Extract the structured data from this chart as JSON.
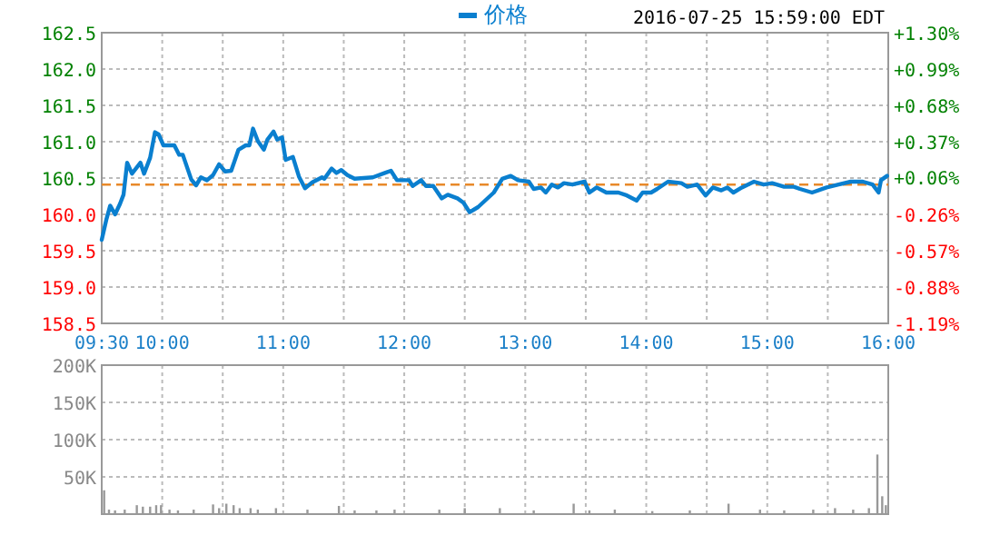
{
  "chart_data": [
    {
      "type": "line",
      "legend": "top",
      "grid": true,
      "line_style": "solid",
      "annotations": [
        "2016-07-25 15:59:00 EDT"
      ],
      "xlim": [
        9.5,
        16
      ],
      "xticks": [
        {
          "value": 9.5,
          "label": "09:30"
        },
        {
          "value": 10,
          "label": "10:00"
        },
        {
          "value": 10.5,
          "label": null
        },
        {
          "value": 11,
          "label": "11:00"
        },
        {
          "value": 11.5,
          "label": null
        },
        {
          "value": 12,
          "label": "12:00"
        },
        {
          "value": 12.5,
          "label": null
        },
        {
          "value": 13,
          "label": "13:00"
        },
        {
          "value": 13.5,
          "label": null
        },
        {
          "value": 14,
          "label": "14:00"
        },
        {
          "value": 14.5,
          "label": null
        },
        {
          "value": 15,
          "label": "15:00"
        },
        {
          "value": 15.5,
          "label": null
        },
        {
          "value": 16,
          "label": "16:00"
        }
      ],
      "ylim": [
        158.5,
        162.5
      ],
      "yticks": [
        {
          "value": 158.5,
          "label": "158.5"
        },
        {
          "value": 159,
          "label": "159.0"
        },
        {
          "value": 159.5,
          "label": "159.5"
        },
        {
          "value": 160,
          "label": "160.0"
        },
        {
          "value": 160.5,
          "label": "160.5"
        },
        {
          "value": 161,
          "label": "161.0"
        },
        {
          "value": 161.5,
          "label": "161.5"
        },
        {
          "value": 162,
          "label": "162.0"
        },
        {
          "value": 162.5,
          "label": "162.5"
        }
      ],
      "y2lim": [
        -1.19,
        1.3
      ],
      "y2ticks": [
        {
          "value": -1.19,
          "label": "-1.19%"
        },
        {
          "value": -0.88,
          "label": "-0.88%"
        },
        {
          "value": -0.57,
          "label": "-0.57%"
        },
        {
          "value": -0.26,
          "label": "-0.26%"
        },
        {
          "value": 0.06,
          "label": "+0.06%"
        },
        {
          "value": 0.37,
          "label": "+0.37%"
        },
        {
          "value": 0.68,
          "label": "+0.68%"
        },
        {
          "value": 0.99,
          "label": "+0.99%"
        },
        {
          "value": 1.3,
          "label": "+1.30%"
        }
      ],
      "ref_lines": [
        {
          "axis": "y",
          "value": 160.41,
          "color": "#e8892a",
          "line_style": "dashed"
        }
      ],
      "series": [
        {
          "name": "价格",
          "color": "#0a7fcf",
          "x": [
            9.5,
            9.54,
            9.57,
            9.61,
            9.65,
            9.68,
            9.71,
            9.75,
            9.82,
            9.85,
            9.9,
            9.94,
            9.97,
            10.01,
            10.1,
            10.14,
            10.17,
            10.24,
            10.28,
            10.32,
            10.37,
            10.42,
            10.47,
            10.52,
            10.57,
            10.63,
            10.69,
            10.72,
            10.75,
            10.79,
            10.84,
            10.87,
            10.92,
            10.95,
            10.99,
            11.02,
            11.08,
            11.13,
            11.18,
            11.24,
            11.32,
            11.34,
            11.4,
            11.44,
            11.48,
            11.53,
            11.59,
            11.74,
            11.84,
            11.89,
            11.94,
            12.04,
            12.07,
            12.14,
            12.18,
            12.24,
            12.31,
            12.36,
            12.44,
            12.49,
            12.54,
            12.61,
            12.74,
            12.81,
            12.88,
            12.94,
            13.03,
            13.07,
            13.13,
            13.17,
            13.22,
            13.27,
            13.32,
            13.39,
            13.49,
            13.53,
            13.59,
            13.67,
            13.77,
            13.84,
            13.92,
            13.97,
            14.04,
            14.09,
            14.18,
            14.29,
            14.34,
            14.42,
            14.49,
            14.55,
            14.62,
            14.67,
            14.72,
            14.79,
            14.89,
            14.97,
            15.04,
            15.14,
            15.22,
            15.27,
            15.37,
            15.49,
            15.59,
            15.69,
            15.79,
            15.87,
            15.92,
            15.94,
            15.99
          ],
          "values": [
            159.65,
            159.94,
            160.12,
            160.0,
            160.14,
            160.27,
            160.71,
            160.56,
            160.71,
            160.56,
            160.78,
            161.13,
            161.1,
            160.95,
            160.95,
            160.82,
            160.82,
            160.48,
            160.4,
            160.51,
            160.47,
            160.54,
            160.69,
            160.59,
            160.6,
            160.89,
            160.95,
            160.95,
            161.18,
            161.01,
            160.89,
            161.03,
            161.14,
            161.03,
            161.06,
            160.75,
            160.79,
            160.52,
            160.36,
            160.44,
            160.51,
            160.49,
            160.63,
            160.57,
            160.61,
            160.54,
            160.49,
            160.51,
            160.57,
            160.6,
            160.47,
            160.47,
            160.39,
            160.47,
            160.39,
            160.39,
            160.22,
            160.27,
            160.22,
            160.16,
            160.03,
            160.1,
            160.3,
            160.49,
            160.53,
            160.47,
            160.45,
            160.35,
            160.37,
            160.3,
            160.41,
            160.37,
            160.43,
            160.41,
            160.45,
            160.3,
            160.37,
            160.3,
            160.3,
            160.26,
            160.19,
            160.3,
            160.3,
            160.35,
            160.45,
            160.43,
            160.38,
            160.41,
            160.26,
            160.37,
            160.33,
            160.37,
            160.3,
            160.37,
            160.45,
            160.41,
            160.43,
            160.38,
            160.38,
            160.35,
            160.3,
            160.37,
            160.41,
            160.45,
            160.45,
            160.41,
            160.3,
            160.47,
            160.53
          ]
        }
      ]
    },
    {
      "type": "bar",
      "grid": true,
      "tick_labels": "y",
      "xlim": [
        9.5,
        16
      ],
      "xticks": [
        9.5,
        10,
        10.5,
        11,
        11.5,
        12,
        12.5,
        13,
        13.5,
        14,
        14.5,
        15,
        15.5,
        16
      ],
      "ylim": [
        0,
        200000
      ],
      "yticks": [
        {
          "value": 50000,
          "label": "50K"
        },
        {
          "value": 100000,
          "label": "100K"
        },
        {
          "value": 150000,
          "label": "150K"
        },
        {
          "value": 200000,
          "label": "200K"
        }
      ],
      "series": [
        {
          "color": "#999999",
          "x": [
            9.52,
            9.56,
            9.61,
            9.69,
            9.79,
            9.84,
            9.9,
            9.95,
            9.99,
            10.06,
            10.13,
            10.26,
            10.42,
            10.47,
            10.53,
            10.59,
            10.64,
            10.73,
            10.79,
            10.94,
            11.2,
            11.46,
            11.59,
            11.77,
            11.92,
            12.29,
            12.5,
            12.79,
            13.07,
            13.4,
            13.53,
            13.74,
            14.05,
            14.36,
            14.68,
            14.94,
            15.14,
            15.38,
            15.56,
            15.71,
            15.84,
            15.91,
            15.95,
            15.98
          ],
          "values": [
            32000,
            6000,
            5000,
            6000,
            12000,
            10000,
            10000,
            12000,
            12000,
            6000,
            5000,
            6000,
            13000,
            8000,
            14000,
            12000,
            8000,
            8000,
            6000,
            8000,
            6000,
            11000,
            5000,
            5000,
            6000,
            6000,
            8000,
            8000,
            5000,
            14000,
            5000,
            6000,
            4000,
            5000,
            14000,
            6000,
            5000,
            6000,
            8000,
            6000,
            8000,
            80000,
            24000,
            12000
          ]
        }
      ]
    }
  ]
}
